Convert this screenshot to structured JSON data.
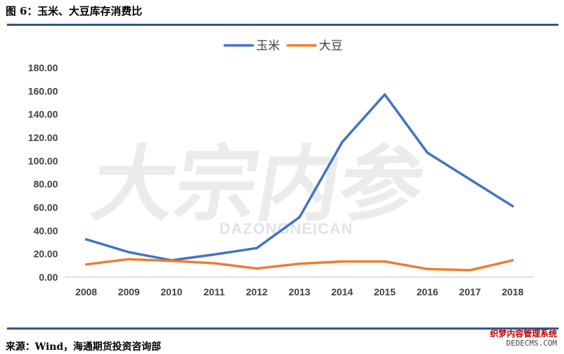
{
  "title": "图 6：玉米、大豆库存消费比",
  "source": "来源：Wind，海通期货投资咨询部",
  "watermark": {
    "main": "大宗内参",
    "sub": "DAZONGNEICAN"
  },
  "stamp": {
    "line1": "织梦内容管理系统",
    "line2": "DEDECMS.COM"
  },
  "chart_data": {
    "type": "line",
    "categories": [
      "2008",
      "2009",
      "2010",
      "2011",
      "2012",
      "2013",
      "2014",
      "2015",
      "2016",
      "2017",
      "2018"
    ],
    "series": [
      {
        "name": "玉米",
        "color": "#4472c4",
        "values": [
          32.5,
          21.5,
          14.5,
          19.5,
          25.0,
          51.5,
          116.0,
          157.0,
          107.0,
          84.0,
          61.0
        ]
      },
      {
        "name": "大豆",
        "color": "#ed7d31",
        "values": [
          11.0,
          15.5,
          14.0,
          12.0,
          7.5,
          11.5,
          13.5,
          13.5,
          7.0,
          6.0,
          14.5
        ]
      }
    ],
    "yticks": [
      "0.00",
      "20.00",
      "40.00",
      "60.00",
      "80.00",
      "100.00",
      "120.00",
      "140.00",
      "160.00",
      "180.00"
    ],
    "ylim": [
      0,
      180
    ],
    "legend": "top-center",
    "grid": false
  }
}
